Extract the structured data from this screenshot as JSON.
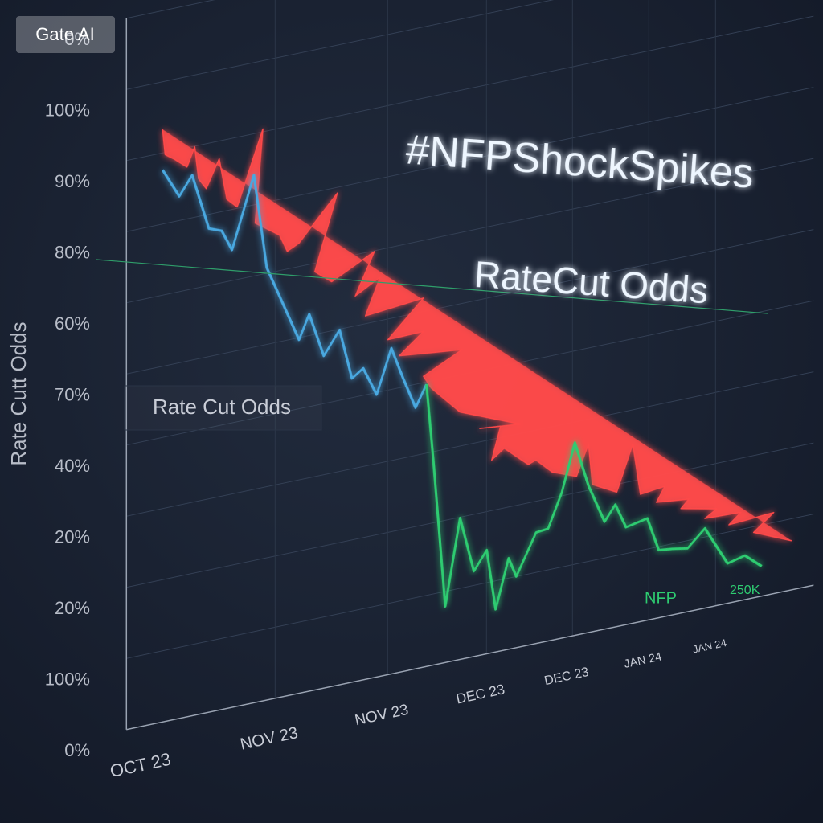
{
  "chart_data": {
    "type": "line",
    "badge": "Gate AI",
    "title": "#NFPShockSpikes",
    "subtitle": "RateCut Odds",
    "y_label": "Rate Cutt Odds",
    "legend_label": "Rate Cut Odds",
    "annotation": "250K",
    "grid": true,
    "categories": [
      "OCT 23",
      "NOV 23",
      "NOV 23",
      "DEC 23",
      "DEC 23",
      "JAN 24",
      "JAN 24"
    ],
    "y_labels": [
      "0%",
      "100%",
      "90%",
      "80%",
      "60%",
      "70%",
      "40%",
      "20%",
      "20%",
      "100%",
      "0%"
    ],
    "series": [
      {
        "color": "#ff4a4a",
        "x": [
          0,
          0.02,
          0.09,
          0.19,
          0.25,
          0.28,
          0.34,
          0.44,
          0.5,
          0.58,
          0.78,
          0.72,
          0.91,
          0.97,
          1.07,
          1.41,
          1.21,
          1.36,
          1.74,
          1.57,
          1.79,
          1.66,
          2.2,
          1.86,
          2.2,
          1.96,
          2.59,
          2.2,
          2.28,
          2.57,
          3.21,
          2.77,
          2.98,
          2.89,
          3.02,
          3.3,
          3.39,
          3.58,
          3.86,
          4.0,
          4.05,
          4.37,
          4.58,
          4.68,
          5.0,
          4.89,
          5.36,
          5.24,
          5.78,
          5.6,
          6.14,
          5.96,
          6.63,
          6.33,
          6.9
        ],
        "values": [
          8.33,
          7.97,
          7.88,
          7.73,
          7.99,
          7.53,
          7.37,
          7.75,
          7.16,
          7.02,
          8.04,
          6.74,
          6.5,
          6.25,
          6.33,
          6.92,
          5.88,
          5.69,
          5.99,
          5.42,
          5.61,
          5.11,
          5.19,
          4.71,
          4.72,
          4.45,
          4.35,
          4.09,
          3.9,
          3.48,
          3.13,
          3.19,
          3.16,
          2.71,
          2.84,
          2.54,
          2.58,
          2.36,
          2.23,
          2.65,
          2.07,
          1.89,
          2.52,
          1.79,
          1.83,
          1.63,
          1.58,
          1.47,
          1.36,
          1.26,
          1.24,
          1.1,
          1.14,
          0.92,
          0.69
        ]
      },
      {
        "color": "#4aa8e0",
        "x": [
          0,
          0.13,
          0.23,
          0.36,
          0.46,
          0.54,
          0.71,
          0.81,
          1.07,
          1.16,
          1.29,
          1.43,
          1.54,
          1.64,
          1.76,
          1.89,
          2.0,
          2.12,
          2.23
        ],
        "values": [
          7.76,
          7.34,
          7.6,
          6.8,
          6.73,
          6.43,
          7.42,
          6.08,
          4.97,
          5.3,
          4.67,
          4.99,
          4.27,
          4.38,
          3.97,
          4.58,
          4.1,
          3.67,
          3.97
        ]
      },
      {
        "name": "NFP",
        "color": "#2ecc71",
        "x": [
          2.23,
          2.3,
          2.42,
          2.57,
          2.71,
          2.84,
          2.93,
          3.07,
          3.16,
          3.39,
          3.53,
          3.69,
          3.84,
          4.0,
          4.21,
          4.35,
          4.49,
          4.77,
          4.92,
          5.1,
          5.34,
          5.6,
          5.94,
          6.2,
          6.45
        ],
        "values": [
          3.97,
          2.88,
          0.79,
          1.99,
          1.2,
          1.46,
          0.6,
          1.28,
          1.0,
          1.56,
          1.58,
          2.05,
          2.71,
          2.06,
          1.51,
          1.72,
          1.37,
          1.43,
          0.95,
          0.93,
          0.89,
          1.12,
          0.56,
          0.62,
          0.42
        ]
      }
    ]
  }
}
